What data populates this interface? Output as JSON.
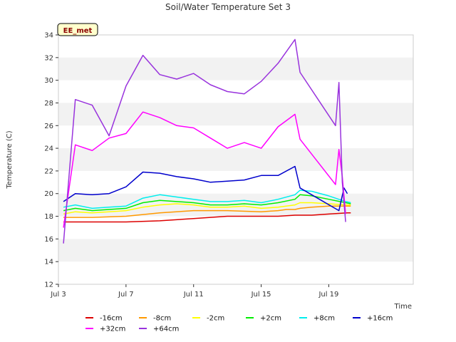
{
  "chart_data": {
    "type": "line",
    "title": "Soil/Water Temperature Set 3",
    "xlabel": "Time",
    "ylabel": "Temperature (C)",
    "badge": "EE_met",
    "xlim": [
      0,
      21
    ],
    "ylim": [
      12,
      34
    ],
    "x_unit": "days since Jul 3",
    "x_ticks": [
      {
        "value": 0,
        "label": "Jul 3"
      },
      {
        "value": 4,
        "label": "Jul 7"
      },
      {
        "value": 8,
        "label": "Jul 11"
      },
      {
        "value": 12,
        "label": "Jul 15"
      },
      {
        "value": 16,
        "label": "Jul 19"
      }
    ],
    "y_ticks": [
      12,
      14,
      16,
      18,
      20,
      22,
      24,
      26,
      28,
      30,
      32,
      34
    ],
    "grid": "horizontal bands",
    "band_color": "#f2f2f2",
    "legend_placement": "bottom",
    "series": [
      {
        "name": "-16cm",
        "color": "#dd0000",
        "x": [
          0.3,
          2,
          4,
          6,
          8,
          10,
          12,
          13,
          14,
          15,
          16,
          17.1,
          17.3
        ],
        "y": [
          17.5,
          17.5,
          17.5,
          17.6,
          17.8,
          18.0,
          18.0,
          18.0,
          18.1,
          18.1,
          18.2,
          18.3,
          18.3
        ]
      },
      {
        "name": "-8cm",
        "color": "#ff9900",
        "x": [
          0.3,
          2,
          4,
          6,
          8,
          10,
          12,
          13,
          13.5,
          14,
          14.3,
          15,
          16,
          17,
          17.3
        ],
        "y": [
          17.9,
          17.9,
          18.0,
          18.3,
          18.5,
          18.5,
          18.4,
          18.5,
          18.6,
          18.6,
          18.7,
          18.8,
          18.9,
          18.9,
          18.9
        ]
      },
      {
        "name": "-2cm",
        "color": "#ffff00",
        "x": [
          0.3,
          1,
          2,
          3,
          4,
          5,
          6,
          7,
          8,
          9,
          10,
          11,
          12,
          13,
          14,
          14.3,
          15,
          16,
          17,
          17.3
        ],
        "y": [
          18.2,
          18.4,
          18.3,
          18.4,
          18.5,
          18.8,
          19.0,
          19.1,
          19.0,
          18.8,
          18.8,
          18.9,
          18.7,
          18.8,
          19.0,
          19.2,
          19.2,
          19.1,
          19.0,
          19.0
        ]
      },
      {
        "name": "+2cm",
        "color": "#00ee00",
        "x": [
          0.3,
          1,
          2,
          3,
          4,
          5,
          6,
          7,
          8,
          9,
          10,
          11,
          12,
          13,
          14,
          14.3,
          15,
          16,
          17,
          17.3
        ],
        "y": [
          18.5,
          18.7,
          18.5,
          18.6,
          18.7,
          19.2,
          19.4,
          19.3,
          19.2,
          19.0,
          19.0,
          19.1,
          19.0,
          19.2,
          19.5,
          19.9,
          19.8,
          19.5,
          19.2,
          19.1
        ]
      },
      {
        "name": "+8cm",
        "color": "#00eeee",
        "x": [
          0.3,
          1,
          2,
          3,
          4,
          5,
          6,
          7,
          8,
          9,
          10,
          11,
          12,
          13,
          14,
          14.3,
          15,
          16,
          17,
          17.3
        ],
        "y": [
          18.8,
          19.0,
          18.7,
          18.8,
          18.9,
          19.6,
          19.9,
          19.7,
          19.5,
          19.3,
          19.3,
          19.4,
          19.2,
          19.5,
          19.9,
          20.3,
          20.2,
          19.8,
          19.3,
          19.2
        ]
      },
      {
        "name": "+16cm",
        "color": "#0000cc",
        "x": [
          0.3,
          1,
          2,
          3,
          4,
          5,
          6,
          7,
          8,
          9,
          10,
          11,
          12,
          13,
          14,
          14.3,
          16.6,
          16.9,
          17.1
        ],
        "y": [
          19.3,
          20.0,
          19.9,
          20.0,
          20.6,
          21.9,
          21.8,
          21.5,
          21.3,
          21.0,
          21.1,
          21.2,
          21.6,
          21.6,
          22.4,
          20.5,
          18.5,
          20.5,
          20.0
        ]
      },
      {
        "name": "+32cm",
        "color": "#ff00ff",
        "x": [
          0.3,
          1,
          2,
          3,
          4,
          5,
          6,
          7,
          8,
          9,
          10,
          11,
          12,
          13,
          14,
          14.3,
          16.4,
          16.6,
          16.8,
          17.0
        ],
        "y": [
          17.0,
          24.3,
          23.8,
          24.9,
          25.3,
          27.2,
          26.7,
          26.0,
          25.8,
          24.9,
          24.0,
          24.5,
          24.0,
          25.9,
          27.0,
          24.8,
          20.8,
          23.9,
          21.5,
          18.2
        ]
      },
      {
        "name": "+64cm",
        "color": "#9933dd",
        "x": [
          0.3,
          1,
          2,
          3,
          4,
          5,
          6,
          7,
          8,
          9,
          10,
          11,
          12,
          13,
          14,
          14.3,
          16.4,
          16.6,
          16.8,
          17.0
        ],
        "y": [
          15.6,
          28.3,
          27.8,
          25.1,
          29.5,
          32.2,
          30.5,
          30.1,
          30.6,
          29.6,
          29.0,
          28.8,
          29.9,
          31.5,
          33.6,
          30.7,
          26.0,
          29.8,
          21.0,
          17.5
        ]
      }
    ]
  }
}
